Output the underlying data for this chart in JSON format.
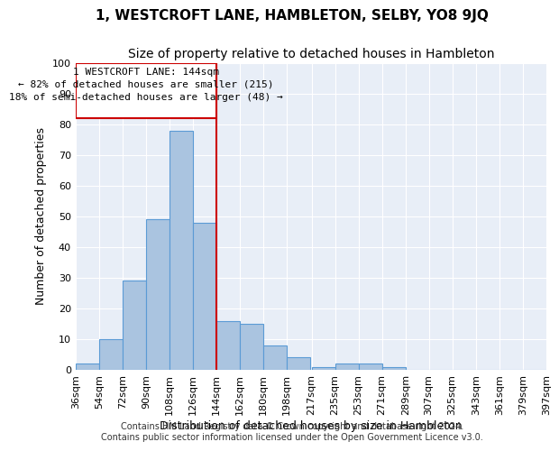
{
  "title": "1, WESTCROFT LANE, HAMBLETON, SELBY, YO8 9JQ",
  "subtitle": "Size of property relative to detached houses in Hambleton",
  "xlabel": "Distribution of detached houses by size in Hambleton",
  "ylabel": "Number of detached properties",
  "bar_color": "#aac4e0",
  "bar_edge_color": "#5b9bd5",
  "background_color": "#e8eef7",
  "grid_color": "#ffffff",
  "marker_line_color": "#cc0000",
  "marker_value": 144,
  "annotation_line1": "1 WESTCROFT LANE: 144sqm",
  "annotation_line2": "← 82% of detached houses are smaller (215)",
  "annotation_line3": "18% of semi-detached houses are larger (48) →",
  "bin_edges": [
    36,
    54,
    72,
    90,
    108,
    126,
    144,
    162,
    180,
    198,
    217,
    235,
    253,
    271,
    289,
    307,
    325,
    343,
    361,
    379,
    397
  ],
  "bin_labels": [
    "36sqm",
    "54sqm",
    "72sqm",
    "90sqm",
    "108sqm",
    "126sqm",
    "144sqm",
    "162sqm",
    "180sqm",
    "198sqm",
    "217sqm",
    "235sqm",
    "253sqm",
    "271sqm",
    "289sqm",
    "307sqm",
    "325sqm",
    "343sqm",
    "361sqm",
    "379sqm",
    "397sqm"
  ],
  "counts": [
    2,
    10,
    29,
    49,
    78,
    48,
    16,
    15,
    8,
    4,
    1,
    2,
    2,
    1,
    0,
    0,
    0,
    0,
    0,
    0
  ],
  "ylim": [
    0,
    100
  ],
  "yticks": [
    0,
    10,
    20,
    30,
    40,
    50,
    60,
    70,
    80,
    90,
    100
  ],
  "footer_line1": "Contains HM Land Registry data © Crown copyright and database right 2024.",
  "footer_line2": "Contains public sector information licensed under the Open Government Licence v3.0.",
  "title_fontsize": 11,
  "subtitle_fontsize": 10,
  "axis_label_fontsize": 9,
  "tick_fontsize": 8,
  "annotation_fontsize": 8,
  "footer_fontsize": 7
}
